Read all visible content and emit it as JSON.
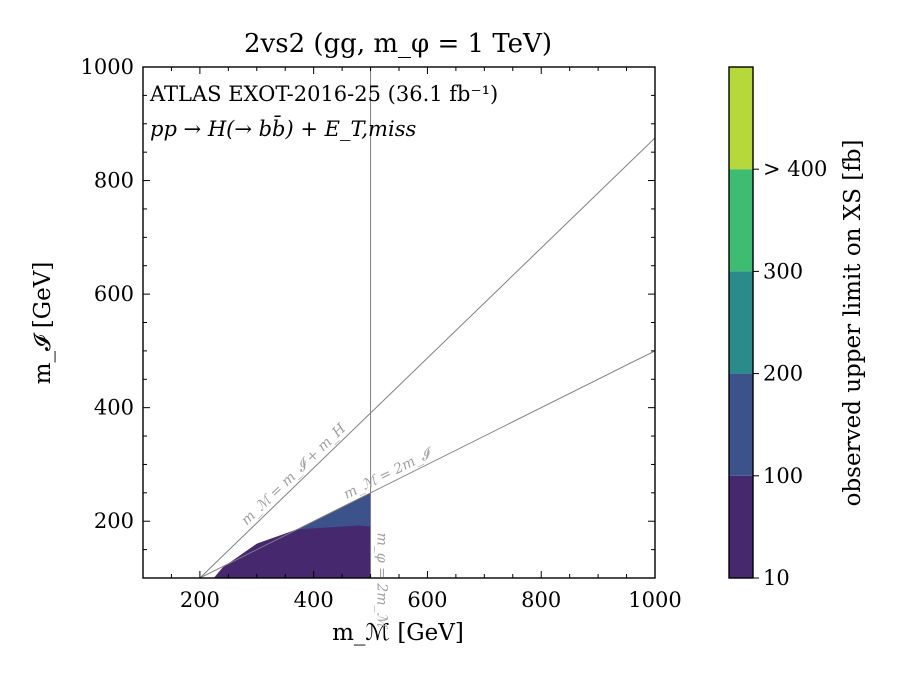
{
  "chart_data": {
    "type": "heatmap",
    "title": "2vs2 (gg, m_φ = 1 TeV)",
    "xlabel": "m_ℳ [GeV]",
    "ylabel": "m_𝓘 [GeV]",
    "xlim": [
      100,
      1000
    ],
    "ylim": [
      100,
      1000
    ],
    "x_ticks": [
      200,
      400,
      600,
      800,
      1000
    ],
    "y_ticks": [
      200,
      400,
      600,
      800,
      1000
    ],
    "annotations": [
      "ATLAS EXOT-2016-25 (36.1 fb⁻¹)",
      "pp → H(→ bb̄) + E_T,miss"
    ],
    "reference_lines": [
      {
        "label": "m_ℳ = m_𝓘 + m_H",
        "points": [
          [
            200,
            100
          ],
          [
            1000,
            875
          ]
        ]
      },
      {
        "label": "m_ℳ = 2m_𝓘",
        "points": [
          [
            200,
            100
          ],
          [
            1000,
            500
          ]
        ]
      },
      {
        "label": "m_φ = 2m_ℳ",
        "points": [
          [
            500,
            100
          ],
          [
            500,
            1000
          ]
        ]
      }
    ],
    "regions": [
      {
        "bin": "100–200",
        "color": "#3b528b",
        "polygon": [
          [
            370,
            185
          ],
          [
            500,
            250
          ],
          [
            500,
            100
          ],
          [
            420,
            100
          ],
          [
            380,
            170
          ]
        ]
      },
      {
        "bin": "10–100",
        "color": "#46286f",
        "polygon": [
          [
            225,
            100
          ],
          [
            500,
            100
          ],
          [
            500,
            190
          ],
          [
            480,
            192
          ],
          [
            370,
            185
          ],
          [
            300,
            160
          ],
          [
            240,
            118
          ]
        ]
      }
    ],
    "colorbar": {
      "label": "observed upper limit on XS [fb]",
      "bins": [
        {
          "range": "10–100",
          "color": "#46286f"
        },
        {
          "range": "100–200",
          "color": "#3b528b"
        },
        {
          "range": "200–300",
          "color": "#2a8b8a"
        },
        {
          "range": "300–400",
          "color": "#3ebc72"
        },
        {
          "range": "> 400",
          "color": "#b6d83a"
        }
      ],
      "tick_labels": [
        "10",
        "100",
        "200",
        "300",
        "> 400"
      ]
    },
    "grid": false,
    "legend": "none"
  }
}
